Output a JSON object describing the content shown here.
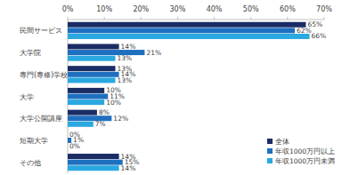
{
  "chart_data": {
    "type": "bar",
    "orientation": "horizontal",
    "categories": [
      "民間サービス",
      "大学院",
      "専門(専修)学校",
      "大学",
      "大学公開講座",
      "短期大学",
      "その他"
    ],
    "series": [
      {
        "name": "全体",
        "color": "#1a2c64",
        "values": [
          65,
          14,
          13,
          10,
          8,
          0,
          14
        ],
        "value_labels": [
          "65%",
          "14%",
          "13%",
          "10%",
          "8%",
          "0%",
          "14%"
        ]
      },
      {
        "name": "年収1000万円以上",
        "color": "#1f6fbf",
        "values": [
          62,
          21,
          14,
          11,
          12,
          1,
          15
        ],
        "value_labels": [
          "62%",
          "21%",
          "14%",
          "11%",
          "12%",
          "1%",
          "15%"
        ]
      },
      {
        "name": "年収1000万円未満",
        "color": "#2aa8e0",
        "values": [
          66,
          13,
          13,
          10,
          7,
          0,
          14
        ],
        "value_labels": [
          "66%",
          "13%",
          "13%",
          "10%",
          "7%",
          "0%",
          "14%"
        ]
      }
    ],
    "xlim": [
      0,
      70
    ],
    "xticks": [
      {
        "value": 0,
        "label": "0%"
      },
      {
        "value": 10,
        "label": "10%"
      },
      {
        "value": 20,
        "label": "20%"
      },
      {
        "value": 30,
        "label": "30%"
      },
      {
        "value": 40,
        "label": "40%"
      },
      {
        "value": 50,
        "label": "50%"
      },
      {
        "value": 60,
        "label": "60%"
      },
      {
        "value": 70,
        "label": "70%"
      }
    ],
    "grid": false,
    "legend": "bottom-right",
    "data_labels": true
  }
}
